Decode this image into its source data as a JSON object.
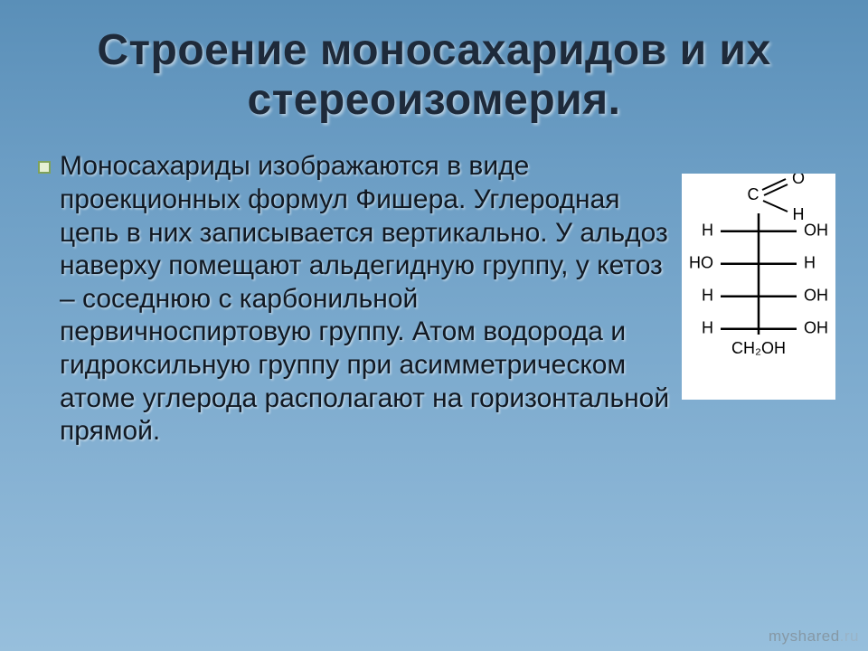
{
  "slide": {
    "title": "Строение моносахаридов и их стереоизомерия.",
    "body": "Моносахариды изображаются в виде проекционных формул Фишера. Углеродная цепь в них записывается вертикально. У альдоз наверху помещают альдегидную группу, у кетоз – соседнюю с карбонильной первичноспиртовую группу. Атом водорода и гидроксильную группу при асимметрическом атоме углерода располагают на горизонтальной прямой."
  },
  "fischer": {
    "type": "diagram",
    "background_color": "#ffffff",
    "line_color": "#000000",
    "text_color": "#000000",
    "font_size": 18,
    "rows": [
      {
        "left": "H",
        "right": "OH"
      },
      {
        "left": "HO",
        "right": "H"
      },
      {
        "left": "H",
        "right": "OH"
      },
      {
        "left": "H",
        "right": "OH"
      }
    ],
    "top_group": {
      "c": "C",
      "o": "O",
      "h": "H"
    },
    "bottom_group": "CH₂OH"
  },
  "style": {
    "title_color": "#1e2a3a",
    "title_fontsize": 48,
    "body_color": "#111923",
    "body_fontsize": 30,
    "bullet_fill": "#e6f0d4",
    "bullet_border": "#7fa25a",
    "bg_gradient": [
      "#5a8fb8",
      "#6b9dc4",
      "#79a8cc",
      "#88b3d4",
      "#97bfdc"
    ]
  },
  "watermark": {
    "main": "myshared",
    "faded": ".ru"
  }
}
